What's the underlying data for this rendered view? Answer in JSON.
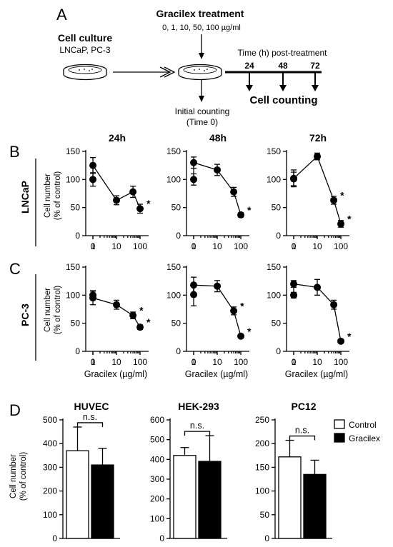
{
  "panel_a": {
    "letter": "A",
    "treatment_title": "Gracilex treatment",
    "doses": "0, 1, 10, 50, 100 µg/ml",
    "culture_title": "Cell culture",
    "culture_lines": "LNCaP, PC-3",
    "time_label": "Time (h) post-treatment",
    "times": [
      "24",
      "48",
      "72"
    ],
    "counting": "Cell counting",
    "initial_line1": "Initial counting",
    "initial_line2": "(Time 0)"
  },
  "chart_data": [
    {
      "type": "line",
      "panel": "B",
      "row_label": "LNCaP",
      "title": "24h",
      "x": [
        0,
        1,
        10,
        50,
        100
      ],
      "y": [
        100,
        125,
        63,
        78,
        48
      ],
      "err": [
        12,
        14,
        8,
        10,
        8
      ],
      "significant": [
        false,
        false,
        false,
        false,
        true
      ],
      "ylabel_line1": "Cell number",
      "ylabel_line2": "(% of control)",
      "ylim": [
        0,
        150
      ],
      "yticks": [
        0,
        50,
        100,
        150
      ],
      "xticks": [
        "0",
        "1",
        "10",
        "100"
      ]
    },
    {
      "type": "line",
      "panel": "B",
      "title": "48h",
      "x": [
        0,
        1,
        10,
        50,
        100
      ],
      "y": [
        100,
        130,
        117,
        78,
        37
      ],
      "err": [
        10,
        10,
        10,
        8,
        4
      ],
      "significant": [
        false,
        false,
        false,
        false,
        true
      ],
      "ylim": [
        0,
        150
      ],
      "yticks": [
        0,
        50,
        100,
        150
      ],
      "xticks": [
        "0",
        "1",
        "10",
        "100"
      ]
    },
    {
      "type": "line",
      "panel": "B",
      "title": "72h",
      "x": [
        0,
        1,
        10,
        50,
        100
      ],
      "y": [
        101,
        102,
        141,
        63,
        21
      ],
      "err": [
        12,
        15,
        6,
        7,
        6
      ],
      "significant": [
        false,
        false,
        false,
        true,
        true
      ],
      "ylim": [
        0,
        150
      ],
      "yticks": [
        0,
        50,
        100,
        150
      ],
      "xticks": [
        "0",
        "1",
        "10",
        "100"
      ]
    },
    {
      "type": "line",
      "panel": "C",
      "row_label": "PC-3",
      "x": [
        0,
        1,
        10,
        50,
        100
      ],
      "y": [
        100,
        95,
        83,
        64,
        43
      ],
      "err": [
        8,
        12,
        8,
        6,
        4
      ],
      "significant": [
        false,
        false,
        false,
        true,
        true
      ],
      "ylabel_line1": "Cell number",
      "ylabel_line2": "(% of control)",
      "xlabel": "Gracilex (µg/ml)",
      "ylim": [
        0,
        150
      ],
      "yticks": [
        0,
        50,
        100,
        150
      ],
      "xticks": [
        "0",
        "1",
        "10",
        "100"
      ]
    },
    {
      "type": "line",
      "panel": "C",
      "x": [
        0,
        1,
        10,
        50,
        100
      ],
      "y": [
        101,
        118,
        116,
        72,
        27
      ],
      "err": [
        20,
        14,
        10,
        7,
        3
      ],
      "significant": [
        false,
        false,
        false,
        true,
        true
      ],
      "xlabel": "Gracilex (µg/ml)",
      "ylim": [
        0,
        150
      ],
      "yticks": [
        0,
        50,
        100,
        150
      ],
      "xticks": [
        "0",
        "1",
        "10",
        "100"
      ]
    },
    {
      "type": "line",
      "panel": "C",
      "x": [
        0,
        1,
        10,
        50,
        100
      ],
      "y": [
        100,
        120,
        114,
        83,
        18
      ],
      "err": [
        5,
        6,
        14,
        8,
        3
      ],
      "significant": [
        false,
        false,
        false,
        false,
        true
      ],
      "xlabel": "Gracilex (µg/ml)",
      "ylim": [
        0,
        150
      ],
      "yticks": [
        0,
        50,
        100,
        150
      ],
      "xticks": [
        "0",
        "1",
        "10",
        "100"
      ]
    },
    {
      "type": "bar",
      "panel": "D",
      "title": "HUVEC",
      "categories": [
        "Control",
        "Gracilex"
      ],
      "values": [
        370,
        310
      ],
      "err": [
        100,
        70
      ],
      "colors": [
        "#ffffff",
        "#000000"
      ],
      "annotation": "n.s.",
      "ylabel_line1": "Cell number",
      "ylabel_line2": "(% of control)",
      "ylim": [
        0,
        500
      ],
      "yticks": [
        0,
        100,
        200,
        300,
        400,
        500
      ]
    },
    {
      "type": "bar",
      "panel": "D",
      "title": "HEK-293",
      "categories": [
        "Control",
        "Gracilex"
      ],
      "values": [
        420,
        390
      ],
      "err": [
        40,
        130
      ],
      "colors": [
        "#ffffff",
        "#000000"
      ],
      "annotation": "n.s.",
      "ylim": [
        0,
        600
      ],
      "yticks": [
        0,
        100,
        200,
        300,
        400,
        500,
        600
      ]
    },
    {
      "type": "bar",
      "panel": "D",
      "title": "PC12",
      "categories": [
        "Control",
        "Gracilex"
      ],
      "values": [
        172,
        135
      ],
      "err": [
        35,
        30
      ],
      "colors": [
        "#ffffff",
        "#000000"
      ],
      "annotation": "n.s.",
      "ylim": [
        0,
        250
      ],
      "yticks": [
        0,
        50,
        100,
        150,
        200,
        250
      ],
      "legend": [
        "Control",
        "Gracilex"
      ]
    }
  ],
  "labels": {
    "panel_b": "B",
    "panel_c": "C",
    "panel_d": "D",
    "sig_marker": "*"
  }
}
